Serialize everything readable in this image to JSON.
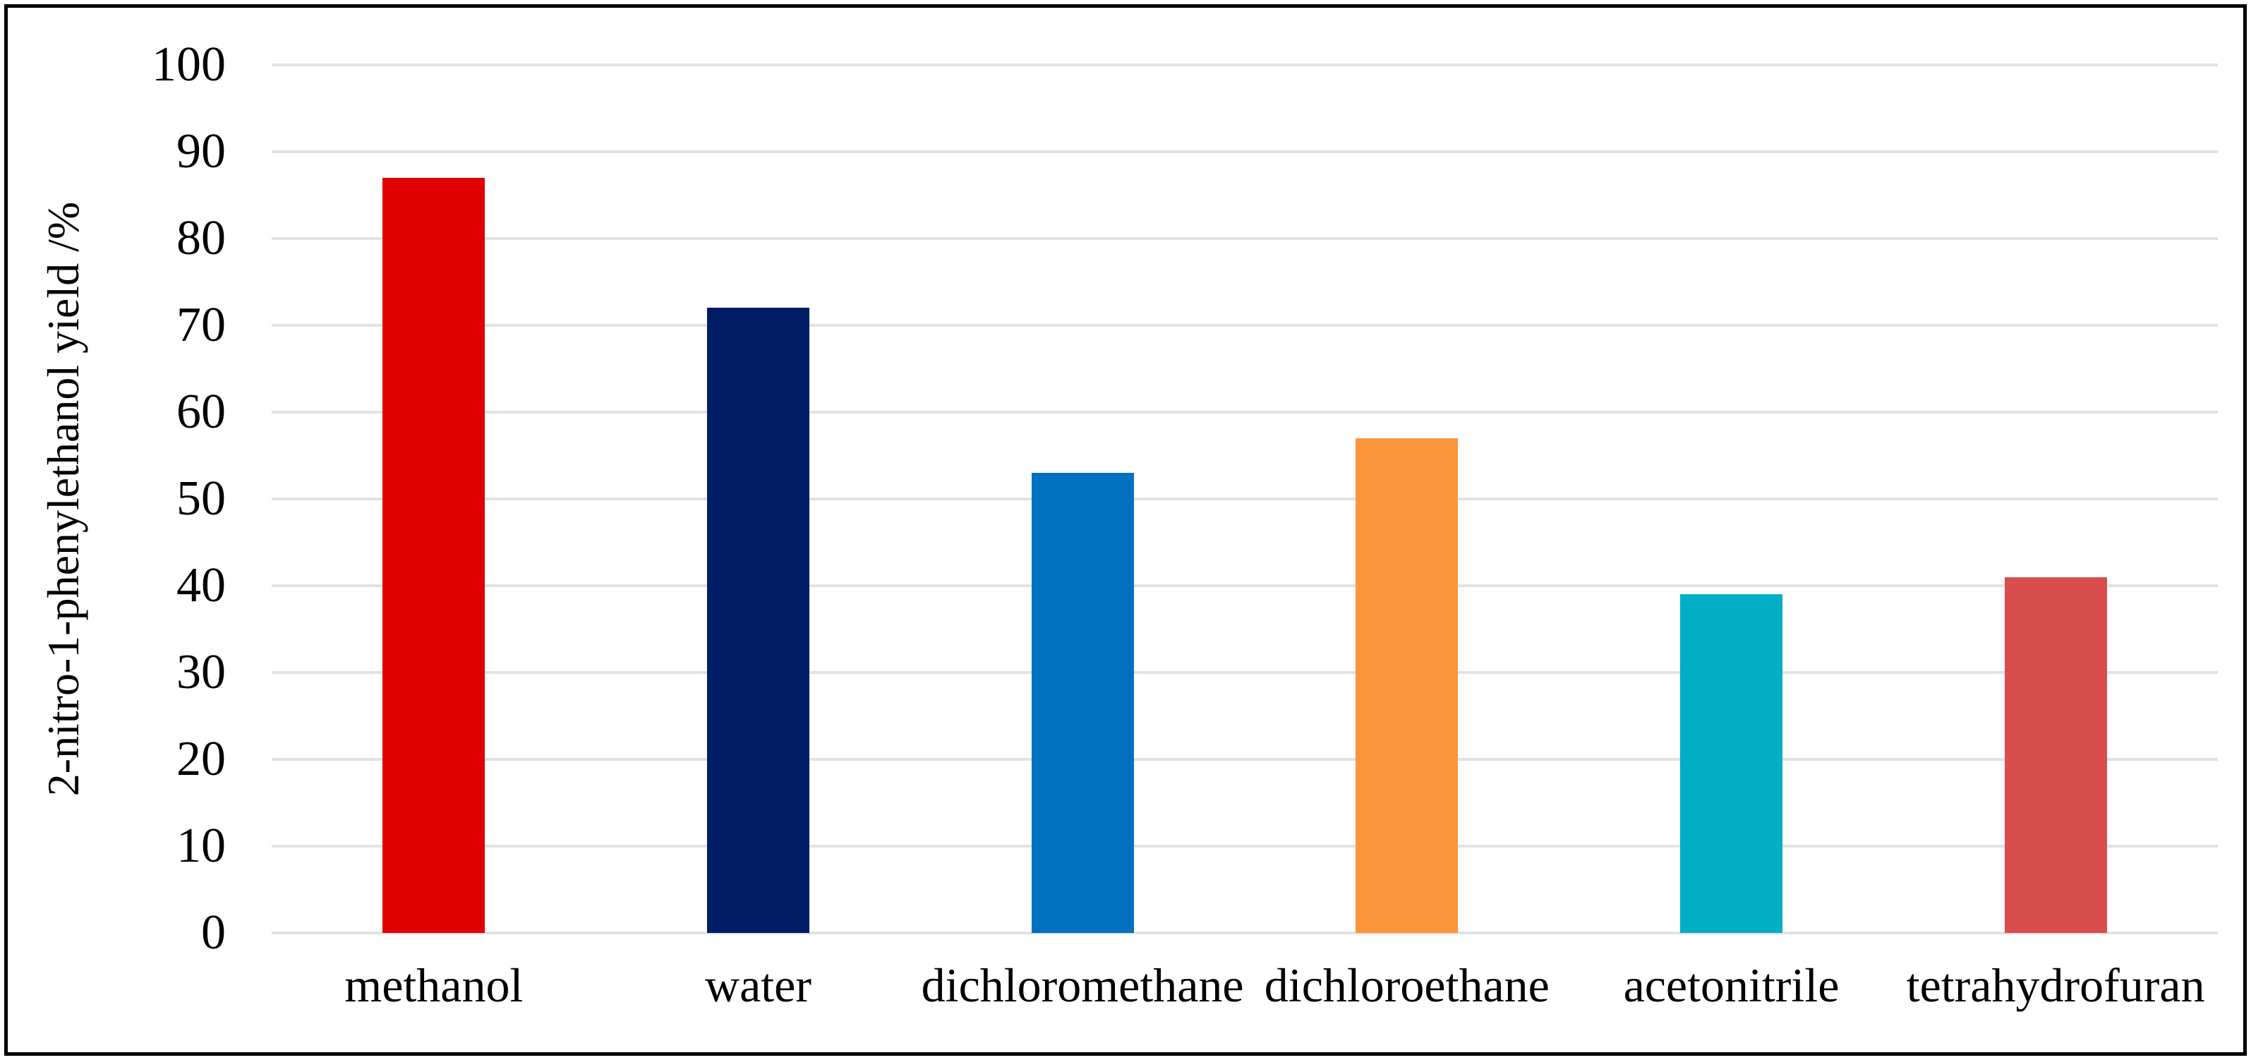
{
  "figure": {
    "background": "#ffffff",
    "border_color": "#000000"
  },
  "chart_data": {
    "type": "bar",
    "title": "",
    "categories": [
      "methanol",
      "water",
      "dichloromethane",
      "dichloroethane",
      "acetonitrile",
      "tetrahydrofuran"
    ],
    "values": [
      87,
      72,
      53,
      57,
      39,
      41
    ],
    "bar_colors": [
      "#E00000",
      "#001C66",
      "#0070C0",
      "#FD953C",
      "#00AEC6",
      "#D94D4D"
    ],
    "xlabel": "",
    "ylabel": "2-nitro-1-phenylethanol yield /%",
    "ylim": [
      0,
      100
    ],
    "yticks": [
      0,
      10,
      20,
      30,
      40,
      50,
      60,
      70,
      80,
      90,
      100
    ],
    "grid": "horizontal",
    "gridline_color": "#E2E2E2",
    "legend_position": "none",
    "bar_width_fraction": 0.315
  }
}
